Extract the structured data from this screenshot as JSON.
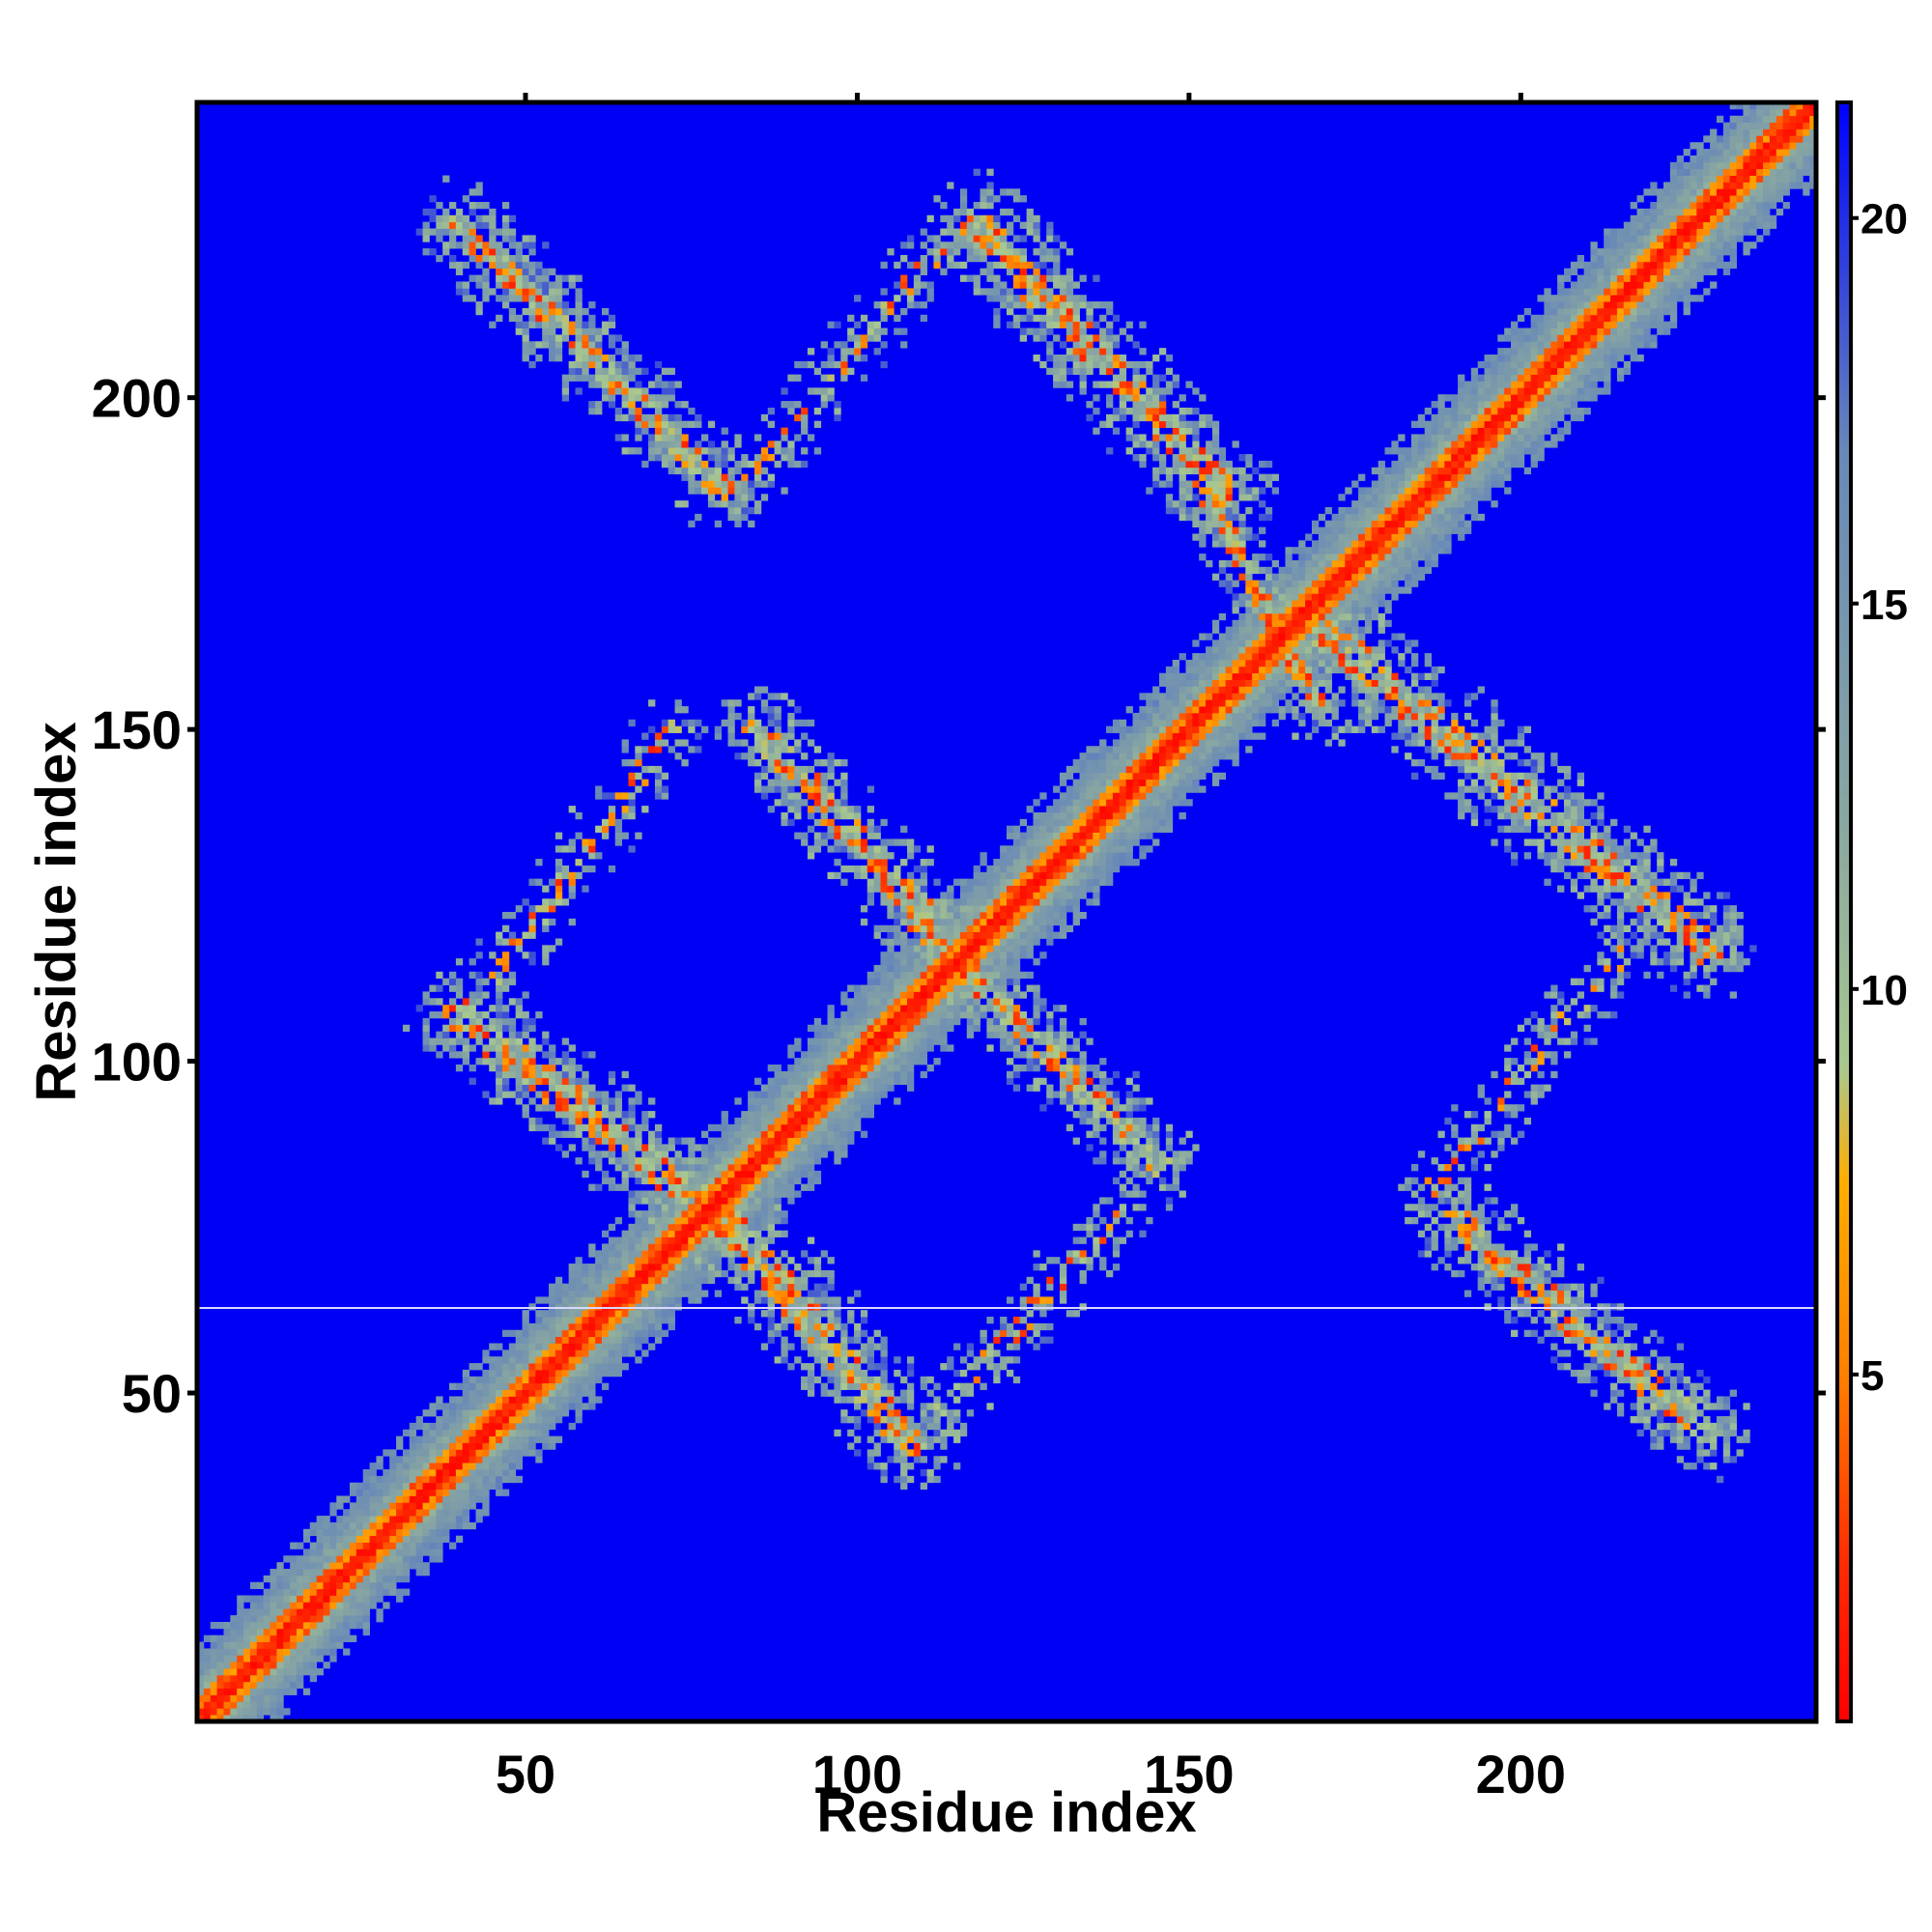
{
  "chart_data": {
    "type": "heatmap",
    "title": "",
    "xlabel": "Residue index",
    "ylabel": "Residue index",
    "xlim": [
      1,
      244
    ],
    "ylim": [
      1,
      244
    ],
    "x_ticks": [
      50,
      100,
      150,
      200
    ],
    "y_ticks": [
      50,
      100,
      150,
      200
    ],
    "colorbar": {
      "range": [
        0.5,
        21.5
      ],
      "ticks": [
        5,
        10,
        15,
        20
      ],
      "colors": [
        {
          "value": 0.5,
          "color": "#ff0000"
        },
        {
          "value": 2.5,
          "color": "#ff2a00"
        },
        {
          "value": 5.0,
          "color": "#ff7f00"
        },
        {
          "value": 7.5,
          "color": "#ffad00"
        },
        {
          "value": 9.0,
          "color": "#a8c890"
        },
        {
          "value": 12.0,
          "color": "#8aa8a0"
        },
        {
          "value": 17.0,
          "color": "#6888b8"
        },
        {
          "value": 21.5,
          "color": "#0000ff"
        }
      ]
    },
    "background_value": 21.5,
    "background_color": "#0000f5",
    "contact_bands": [
      {
        "name": "main-diagonal",
        "x": [
          1,
          244
        ],
        "y": [
          1,
          244
        ],
        "width": 7
      },
      {
        "name": "hairpin-1",
        "x": [
          40,
          80
        ],
        "y": [
          107,
          76
        ],
        "width": 7
      },
      {
        "name": "hairpin-2",
        "x": [
          80,
          108
        ],
        "y": [
          76,
          43
        ],
        "width": 7
      },
      {
        "name": "hairpin-3",
        "x": [
          85,
          110
        ],
        "y": [
          150,
          122
        ],
        "width": 6
      },
      {
        "name": "hairpin-4",
        "x": [
          110,
          145
        ],
        "y": [
          120,
          85
        ],
        "width": 6
      },
      {
        "name": "hairpin-5",
        "x": [
          40,
          80
        ],
        "y": [
          226,
          186
        ],
        "width": 6
      },
      {
        "name": "hairpin-6",
        "x": [
          118,
          155
        ],
        "y": [
          226,
          186
        ],
        "width": 7
      },
      {
        "name": "hairpin-7",
        "x": [
          153,
          170
        ],
        "y": [
          185,
          152
        ],
        "width": 4
      },
      {
        "name": "hairpin-8",
        "x": [
          170,
          228
        ],
        "y": [
          165,
          117
        ],
        "width": 7
      },
      {
        "name": "hairpin-9",
        "x": [
          190,
          228
        ],
        "y": [
          76,
          44
        ],
        "width": 6
      },
      {
        "name": "loop-1",
        "x": [
          46,
          72
        ],
        "y": [
          113,
          150
        ],
        "width": 4
      },
      {
        "name": "loop-2",
        "x": [
          112,
          140
        ],
        "y": [
          47,
          77
        ],
        "width": 4
      },
      {
        "name": "loop-3",
        "x": [
          82,
          112
        ],
        "y": [
          186,
          222
        ],
        "width": 4
      },
      {
        "name": "loop-4",
        "x": [
          186,
          215
        ],
        "y": [
          80,
          116
        ],
        "width": 4
      }
    ]
  }
}
